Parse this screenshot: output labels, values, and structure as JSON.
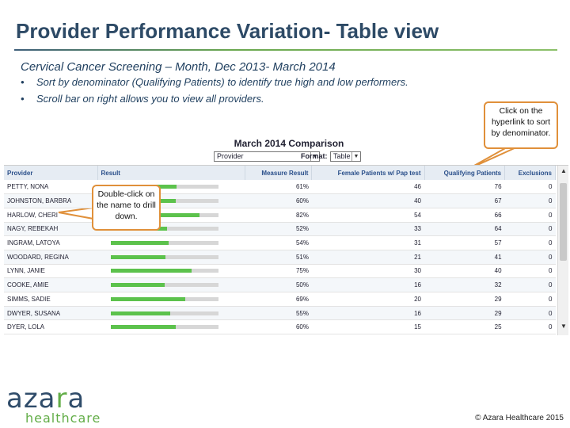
{
  "slide": {
    "title": "Provider Performance Variation- Table view",
    "subtitle": "Cervical Cancer Screening – Month,  Dec 2013- March 2014",
    "bullets": [
      "Sort by denominator (Qualifying Patients) to identify true high and low performers.",
      "Scroll bar on right allows you to view all providers."
    ]
  },
  "callouts": {
    "sort": "Click on the hyperlink to sort by denominator.",
    "drill": "Double-click on the name to drill down."
  },
  "report": {
    "title": "March 2014 Comparison",
    "provider_select": "Provider",
    "format_label": "Format:",
    "format_select": "Table",
    "columns": [
      "Provider",
      "Result",
      "Measure Result",
      "Female Patients w/ Pap test",
      "Qualifying Patients",
      "Exclusions"
    ],
    "rows": [
      {
        "provider": "PETTY, NONA",
        "measure": "61%",
        "measure_fraction": 0.61,
        "female": "46",
        "qualifying": "76",
        "exclusions": "0"
      },
      {
        "provider": "JOHNSTON, BARBRA",
        "measure": "60%",
        "measure_fraction": 0.6,
        "female": "40",
        "qualifying": "67",
        "exclusions": "0"
      },
      {
        "provider": "HARLOW, CHERI",
        "measure": "82%",
        "measure_fraction": 0.82,
        "female": "54",
        "qualifying": "66",
        "exclusions": "0"
      },
      {
        "provider": "NAGY, REBEKAH",
        "measure": "52%",
        "measure_fraction": 0.52,
        "female": "33",
        "qualifying": "64",
        "exclusions": "0"
      },
      {
        "provider": "INGRAM, LATOYA",
        "measure": "54%",
        "measure_fraction": 0.54,
        "female": "31",
        "qualifying": "57",
        "exclusions": "0"
      },
      {
        "provider": "WOODARD, REGINA",
        "measure": "51%",
        "measure_fraction": 0.51,
        "female": "21",
        "qualifying": "41",
        "exclusions": "0"
      },
      {
        "provider": "LYNN, JANIE",
        "measure": "75%",
        "measure_fraction": 0.75,
        "female": "30",
        "qualifying": "40",
        "exclusions": "0"
      },
      {
        "provider": "COOKE, AMIE",
        "measure": "50%",
        "measure_fraction": 0.5,
        "female": "16",
        "qualifying": "32",
        "exclusions": "0"
      },
      {
        "provider": "SIMMS, SADIE",
        "measure": "69%",
        "measure_fraction": 0.69,
        "female": "20",
        "qualifying": "29",
        "exclusions": "0"
      },
      {
        "provider": "DWYER, SUSANA",
        "measure": "55%",
        "measure_fraction": 0.55,
        "female": "16",
        "qualifying": "29",
        "exclusions": "0"
      },
      {
        "provider": "DYER, LOLA",
        "measure": "60%",
        "measure_fraction": 0.6,
        "female": "15",
        "qualifying": "25",
        "exclusions": "0"
      }
    ]
  },
  "logo": {
    "name": "azara",
    "tagline": "healthcare"
  },
  "footer": {
    "copyright": "© Azara Healthcare 2015"
  },
  "colors": {
    "bar_fill": "#5cc24c",
    "bar_track": "#d7d7d7",
    "callout_border": "#e0903a",
    "header_text": "#2a4f8a"
  }
}
